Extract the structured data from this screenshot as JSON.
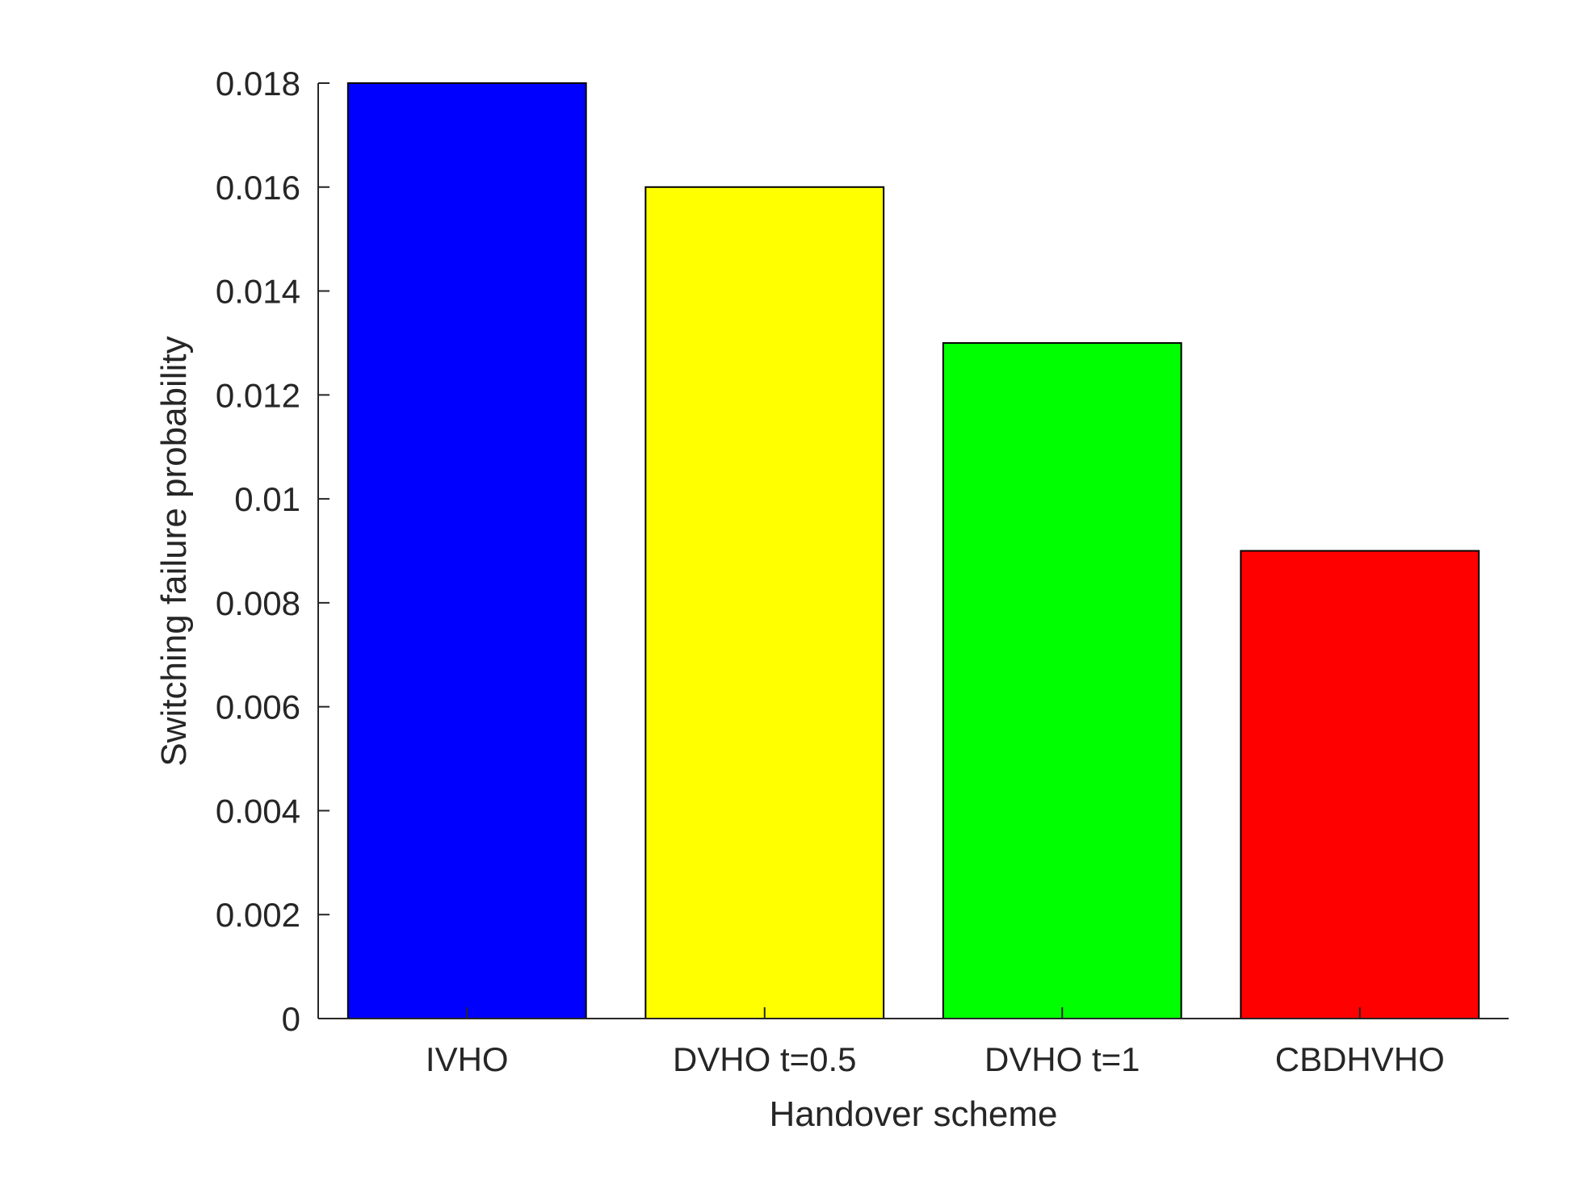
{
  "chart_data": {
    "type": "bar",
    "title": "",
    "xlabel": "Handover scheme",
    "ylabel": "Switching failure probability",
    "categories": [
      "IVHO",
      "DVHO t=0.5",
      "DVHO t=1",
      "CBDHVHO"
    ],
    "values": [
      0.018,
      0.016,
      0.013,
      0.009
    ],
    "bar_colors": [
      "#0000ff",
      "#ffff00",
      "#00ff00",
      "#ff0000"
    ],
    "ylim": [
      0,
      0.018
    ],
    "yticks": [
      {
        "value": 0,
        "label": "0"
      },
      {
        "value": 0.002,
        "label": "0.002"
      },
      {
        "value": 0.004,
        "label": "0.004"
      },
      {
        "value": 0.006,
        "label": "0.006"
      },
      {
        "value": 0.008,
        "label": "0.008"
      },
      {
        "value": 0.01,
        "label": "0.01"
      },
      {
        "value": 0.012,
        "label": "0.012"
      },
      {
        "value": 0.014,
        "label": "0.014"
      },
      {
        "value": 0.016,
        "label": "0.016"
      },
      {
        "value": 0.018,
        "label": "0.018"
      }
    ],
    "grid": false,
    "legend": "none"
  }
}
